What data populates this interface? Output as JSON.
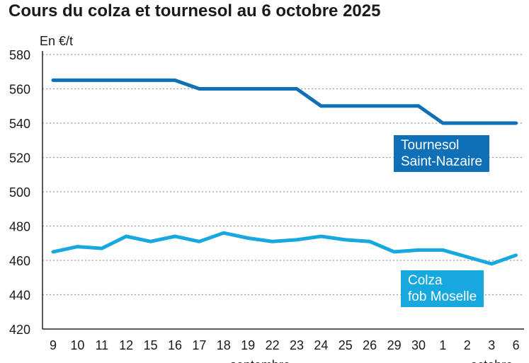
{
  "chart_data": {
    "type": "line",
    "title": "Cours du colza et tournesol au 6 octobre 2025",
    "ylabel": "En €/t",
    "xlabel": "",
    "ylim": [
      420,
      580
    ],
    "yticks": [
      580,
      560,
      540,
      520,
      500,
      480,
      460,
      440,
      420
    ],
    "categories": [
      "9",
      "10",
      "11",
      "12",
      "15",
      "16",
      "17",
      "18",
      "19",
      "22",
      "23",
      "24",
      "25",
      "26",
      "29",
      "30",
      "1",
      "2",
      "3",
      "6"
    ],
    "month_labels": [
      "septembre",
      "octobre"
    ],
    "grid": true,
    "series": [
      {
        "name_lines": [
          "Tournesol",
          "Saint-Nazaire"
        ],
        "color": "#0f70b7",
        "values": [
          565,
          565,
          565,
          565,
          565,
          565,
          560,
          560,
          560,
          560,
          560,
          550,
          550,
          550,
          550,
          550,
          540,
          540,
          540,
          540
        ]
      },
      {
        "name_lines": [
          "Colza",
          "fob Moselle"
        ],
        "color": "#18a8e0",
        "values": [
          465,
          468,
          467,
          474,
          471,
          474,
          471,
          476,
          473,
          471,
          472,
          474,
          472,
          471,
          465,
          466,
          466,
          462,
          458,
          463
        ]
      }
    ]
  }
}
